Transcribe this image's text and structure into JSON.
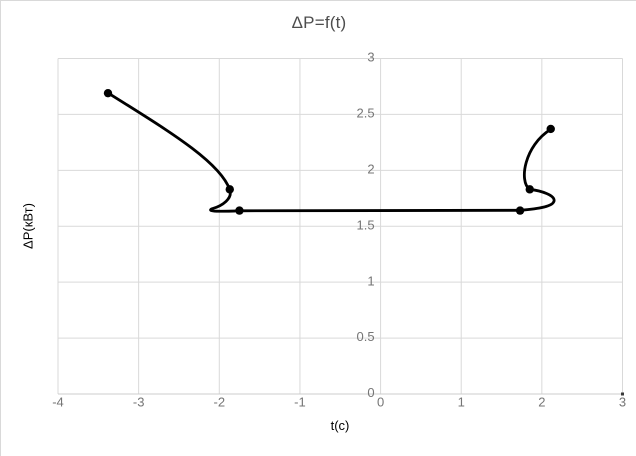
{
  "chart_data": {
    "type": "line",
    "title": "ΔP=f(t)",
    "xlabel": "t(c)",
    "ylabel": "ΔP(кВт)",
    "xlim": [
      -4,
      3
    ],
    "ylim": [
      0,
      3
    ],
    "x_ticks": [
      "-4",
      "-3",
      "-2",
      "-1",
      "0",
      "1",
      "2",
      "3"
    ],
    "y_ticks": [
      "0",
      "0.5",
      "1",
      "1.5",
      "2",
      "2.5",
      "3"
    ],
    "grid": true,
    "legend": false,
    "smooth": true,
    "series": [
      {
        "name": "ΔP",
        "points": [
          [
            -3.38,
            2.69
          ],
          [
            -1.87,
            1.83
          ],
          [
            -1.75,
            1.64
          ],
          [
            1.73,
            1.64
          ],
          [
            1.85,
            1.83
          ],
          [
            2.11,
            2.37
          ]
        ]
      }
    ],
    "curve_path": [
      {
        "type": "M",
        "pts": [
          [
            -3.38,
            2.692
          ]
        ]
      },
      {
        "type": "C",
        "pts": [
          [
            -2.662,
            2.366
          ],
          [
            -1.993,
            2.08
          ],
          [
            -1.869,
            1.826
          ]
        ]
      },
      {
        "type": "C",
        "pts": [
          [
            -1.832,
            1.75
          ],
          [
            -1.956,
            1.683
          ],
          [
            -2.092,
            1.656
          ]
        ]
      },
      {
        "type": "C",
        "pts": [
          [
            -2.166,
            1.629
          ],
          [
            -1.981,
            1.632
          ],
          [
            -1.751,
            1.638
          ]
        ]
      },
      {
        "type": "L",
        "pts": [
          [
            1.73,
            1.643
          ]
        ]
      },
      {
        "type": "C",
        "pts": [
          [
            1.984,
            1.656
          ],
          [
            2.133,
            1.679
          ],
          [
            2.151,
            1.723
          ]
        ]
      },
      {
        "type": "C",
        "pts": [
          [
            2.17,
            1.777
          ],
          [
            1.996,
            1.817
          ],
          [
            1.848,
            1.83
          ]
        ]
      },
      {
        "type": "C",
        "pts": [
          [
            1.711,
            1.902
          ],
          [
            1.786,
            2.223
          ],
          [
            2.108,
            2.366
          ]
        ]
      }
    ],
    "colors": {
      "grid": "#d9d9d9",
      "axis_line": "#cccccc",
      "axis_end_tick": "#3a3a3a",
      "tick_text": "#757575",
      "axis_title_text": "#6f6f6f",
      "title_text": "#4d4d4d",
      "series": "#000000"
    }
  }
}
